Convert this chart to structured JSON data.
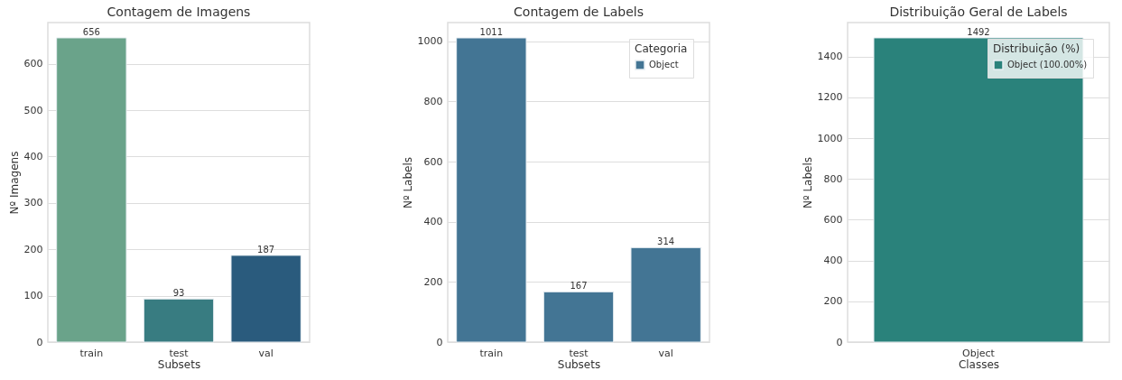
{
  "chart_data": [
    {
      "type": "bar",
      "title": "Contagem de Imagens",
      "xlabel": "Subsets",
      "ylabel": "Nº Imagens",
      "categories": [
        "train",
        "test",
        "val"
      ],
      "values": [
        656,
        93,
        187
      ],
      "colors": [
        "#6aa38a",
        "#387c81",
        "#2a5b7d"
      ],
      "ylim": [
        0,
        689
      ],
      "yticks": [
        0,
        100,
        200,
        300,
        400,
        500,
        600
      ],
      "grid": "y",
      "data_labels": true
    },
    {
      "type": "bar",
      "title": "Contagem de Labels",
      "xlabel": "Subsets",
      "ylabel": "Nº Labels",
      "legend_title": "Categoria",
      "categories": [
        "train",
        "test",
        "val"
      ],
      "series": [
        {
          "name": "Object",
          "color": "#437594",
          "values": [
            1011,
            167,
            314
          ]
        }
      ],
      "ylim": [
        0,
        1062
      ],
      "yticks": [
        0,
        200,
        400,
        600,
        800,
        1000
      ],
      "grid": "y",
      "legend": "top right",
      "data_labels": true
    },
    {
      "type": "bar",
      "title": "Distribuição Geral de Labels",
      "xlabel": "Classes",
      "ylabel": "Nº Labels",
      "legend_title": "Distribuição (%)",
      "categories": [
        "Object"
      ],
      "series": [
        {
          "name": "Object (100.00%)",
          "color": "#2a827b",
          "values": [
            1492
          ]
        }
      ],
      "ylim": [
        0,
        1567
      ],
      "yticks": [
        0,
        200,
        400,
        600,
        800,
        1000,
        1200,
        1400
      ],
      "grid": "y",
      "legend": "top right",
      "data_labels": true
    }
  ]
}
